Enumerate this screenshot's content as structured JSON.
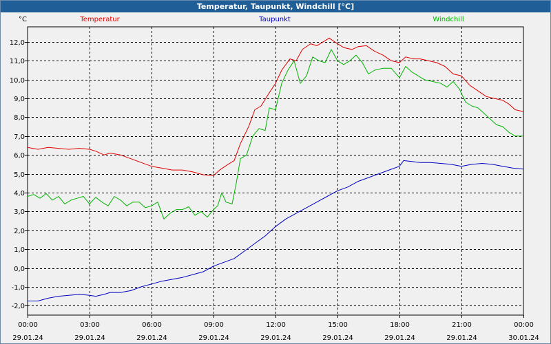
{
  "window": {
    "title": "Temperatur, Taupunkt, Windchill [°C]"
  },
  "chart_data": {
    "type": "line",
    "title": "Temperatur, Taupunkt, Windchill [°C]",
    "ylabel": "°C",
    "xlabel": "",
    "ylim": [
      -2.5,
      12.8
    ],
    "xlim": [
      0,
      24
    ],
    "grid": true,
    "legend": "top",
    "yticks": [
      12,
      11,
      10,
      9,
      8,
      7,
      6,
      5,
      4,
      3,
      2,
      1,
      0,
      -1,
      -2
    ],
    "ytick_labels": [
      "12,0",
      "11,0",
      "10,0",
      "9,0",
      "8,0",
      "7,0",
      "6,0",
      "5,0",
      "4,0",
      "3,0",
      "2,0",
      "1,0",
      "0,0",
      "-1,0",
      "-2,0"
    ],
    "xticks": [
      {
        "hour": 0,
        "time": "00:00",
        "date": "29.01.24"
      },
      {
        "hour": 3,
        "time": "03:00",
        "date": "29.01.24"
      },
      {
        "hour": 6,
        "time": "06:00",
        "date": "29.01.24"
      },
      {
        "hour": 9,
        "time": "09:00",
        "date": "29.01.24"
      },
      {
        "hour": 12,
        "time": "12:00",
        "date": "29.01.24"
      },
      {
        "hour": 15,
        "time": "15:00",
        "date": "29.01.24"
      },
      {
        "hour": 18,
        "time": "18:00",
        "date": "29.01.24"
      },
      {
        "hour": 21,
        "time": "21:00",
        "date": "29.01.24"
      },
      {
        "hour": 24,
        "time": "00:00",
        "date": "30.01.24"
      }
    ],
    "series": [
      {
        "name": "Temperatur",
        "color": "#e00000",
        "points": [
          [
            0,
            6.4
          ],
          [
            0.5,
            6.3
          ],
          [
            1,
            6.4
          ],
          [
            1.5,
            6.35
          ],
          [
            2,
            6.3
          ],
          [
            2.5,
            6.35
          ],
          [
            3,
            6.3
          ],
          [
            3.3,
            6.2
          ],
          [
            3.7,
            6.0
          ],
          [
            4,
            6.1
          ],
          [
            4.5,
            6.0
          ],
          [
            5,
            5.8
          ],
          [
            5.5,
            5.6
          ],
          [
            6,
            5.4
          ],
          [
            6.5,
            5.3
          ],
          [
            7,
            5.2
          ],
          [
            7.5,
            5.2
          ],
          [
            8,
            5.1
          ],
          [
            8.5,
            4.95
          ],
          [
            9,
            4.9
          ],
          [
            9.3,
            5.2
          ],
          [
            9.7,
            5.5
          ],
          [
            10,
            5.7
          ],
          [
            10.3,
            6.6
          ],
          [
            10.7,
            7.5
          ],
          [
            11,
            8.4
          ],
          [
            11.3,
            8.6
          ],
          [
            11.7,
            9.3
          ],
          [
            12,
            9.8
          ],
          [
            12.3,
            10.5
          ],
          [
            12.7,
            11.1
          ],
          [
            13,
            11.0
          ],
          [
            13.3,
            11.6
          ],
          [
            13.7,
            11.9
          ],
          [
            14,
            11.8
          ],
          [
            14.3,
            12.0
          ],
          [
            14.6,
            12.2
          ],
          [
            15,
            11.9
          ],
          [
            15.3,
            11.7
          ],
          [
            15.7,
            11.6
          ],
          [
            16,
            11.75
          ],
          [
            16.4,
            11.8
          ],
          [
            16.8,
            11.5
          ],
          [
            17.2,
            11.3
          ],
          [
            17.6,
            11.0
          ],
          [
            18,
            10.9
          ],
          [
            18.3,
            11.2
          ],
          [
            18.7,
            11.1
          ],
          [
            19,
            11.1
          ],
          [
            19.4,
            11.0
          ],
          [
            19.8,
            10.9
          ],
          [
            20.2,
            10.7
          ],
          [
            20.6,
            10.3
          ],
          [
            21,
            10.2
          ],
          [
            21.4,
            9.7
          ],
          [
            21.8,
            9.4
          ],
          [
            22.2,
            9.1
          ],
          [
            22.6,
            9.0
          ],
          [
            23,
            8.9
          ],
          [
            23.3,
            8.7
          ],
          [
            23.6,
            8.4
          ],
          [
            24,
            8.3
          ]
        ]
      },
      {
        "name": "Taupunkt",
        "color": "#0000c0",
        "points": [
          [
            0,
            -1.75
          ],
          [
            0.5,
            -1.75
          ],
          [
            1,
            -1.6
          ],
          [
            1.5,
            -1.5
          ],
          [
            2,
            -1.45
          ],
          [
            2.5,
            -1.4
          ],
          [
            3,
            -1.45
          ],
          [
            3.3,
            -1.5
          ],
          [
            3.7,
            -1.4
          ],
          [
            4,
            -1.3
          ],
          [
            4.5,
            -1.3
          ],
          [
            5,
            -1.2
          ],
          [
            5.5,
            -1.0
          ],
          [
            6,
            -0.85
          ],
          [
            6.5,
            -0.7
          ],
          [
            7,
            -0.6
          ],
          [
            7.5,
            -0.5
          ],
          [
            8,
            -0.35
          ],
          [
            8.5,
            -0.2
          ],
          [
            9,
            0.1
          ],
          [
            9.5,
            0.3
          ],
          [
            10,
            0.5
          ],
          [
            10.5,
            0.9
          ],
          [
            11,
            1.3
          ],
          [
            11.5,
            1.7
          ],
          [
            12,
            2.2
          ],
          [
            12.5,
            2.6
          ],
          [
            13,
            2.9
          ],
          [
            13.5,
            3.2
          ],
          [
            14,
            3.5
          ],
          [
            14.5,
            3.8
          ],
          [
            15,
            4.1
          ],
          [
            15.5,
            4.3
          ],
          [
            16,
            4.6
          ],
          [
            16.5,
            4.8
          ],
          [
            17,
            5.0
          ],
          [
            17.5,
            5.2
          ],
          [
            18,
            5.4
          ],
          [
            18.2,
            5.7
          ],
          [
            18.6,
            5.65
          ],
          [
            19,
            5.6
          ],
          [
            19.5,
            5.6
          ],
          [
            20,
            5.55
          ],
          [
            20.5,
            5.5
          ],
          [
            21,
            5.4
          ],
          [
            21.5,
            5.5
          ],
          [
            22,
            5.55
          ],
          [
            22.5,
            5.5
          ],
          [
            23,
            5.4
          ],
          [
            23.5,
            5.3
          ],
          [
            24,
            5.25
          ]
        ]
      },
      {
        "name": "Windchill",
        "color": "#00b400",
        "points": [
          [
            0,
            3.8
          ],
          [
            0.3,
            3.9
          ],
          [
            0.6,
            3.7
          ],
          [
            0.9,
            3.95
          ],
          [
            1.2,
            3.6
          ],
          [
            1.5,
            3.8
          ],
          [
            1.8,
            3.4
          ],
          [
            2.1,
            3.6
          ],
          [
            2.4,
            3.7
          ],
          [
            2.7,
            3.8
          ],
          [
            3,
            3.4
          ],
          [
            3.3,
            3.75
          ],
          [
            3.6,
            3.5
          ],
          [
            3.9,
            3.3
          ],
          [
            4.2,
            3.8
          ],
          [
            4.5,
            3.6
          ],
          [
            4.8,
            3.3
          ],
          [
            5.1,
            3.5
          ],
          [
            5.4,
            3.5
          ],
          [
            5.7,
            3.2
          ],
          [
            6,
            3.3
          ],
          [
            6.3,
            3.5
          ],
          [
            6.6,
            2.6
          ],
          [
            6.9,
            2.9
          ],
          [
            7.2,
            3.1
          ],
          [
            7.5,
            3.1
          ],
          [
            7.8,
            3.25
          ],
          [
            8.1,
            2.8
          ],
          [
            8.4,
            3.0
          ],
          [
            8.7,
            2.7
          ],
          [
            9,
            3.1
          ],
          [
            9.2,
            3.3
          ],
          [
            9.4,
            4.0
          ],
          [
            9.6,
            3.5
          ],
          [
            9.9,
            3.4
          ],
          [
            10.1,
            4.5
          ],
          [
            10.3,
            5.8
          ],
          [
            10.6,
            6.0
          ],
          [
            10.9,
            7.0
          ],
          [
            11.2,
            7.4
          ],
          [
            11.5,
            7.3
          ],
          [
            11.7,
            8.5
          ],
          [
            12,
            8.4
          ],
          [
            12.3,
            9.8
          ],
          [
            12.6,
            10.5
          ],
          [
            12.9,
            11.0
          ],
          [
            13.2,
            9.8
          ],
          [
            13.5,
            10.2
          ],
          [
            13.8,
            11.2
          ],
          [
            14.1,
            11.0
          ],
          [
            14.4,
            10.9
          ],
          [
            14.7,
            11.6
          ],
          [
            15,
            11.0
          ],
          [
            15.3,
            10.8
          ],
          [
            15.6,
            11.0
          ],
          [
            15.9,
            11.3
          ],
          [
            16.2,
            10.9
          ],
          [
            16.5,
            10.3
          ],
          [
            16.8,
            10.5
          ],
          [
            17.2,
            10.6
          ],
          [
            17.6,
            10.6
          ],
          [
            18,
            10.1
          ],
          [
            18.3,
            10.7
          ],
          [
            18.6,
            10.4
          ],
          [
            18.9,
            10.2
          ],
          [
            19.2,
            10.0
          ],
          [
            19.6,
            9.9
          ],
          [
            20,
            9.8
          ],
          [
            20.3,
            9.6
          ],
          [
            20.6,
            9.9
          ],
          [
            20.9,
            9.5
          ],
          [
            21.2,
            8.8
          ],
          [
            21.5,
            8.6
          ],
          [
            21.8,
            8.5
          ],
          [
            22.1,
            8.2
          ],
          [
            22.4,
            7.9
          ],
          [
            22.7,
            7.6
          ],
          [
            23,
            7.5
          ],
          [
            23.3,
            7.2
          ],
          [
            23.6,
            7.0
          ],
          [
            24,
            7.0
          ]
        ]
      }
    ]
  }
}
